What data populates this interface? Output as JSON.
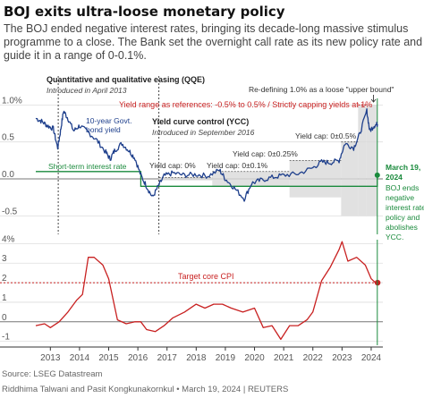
{
  "header": {
    "title": "BOJ exits ultra-loose monetary policy",
    "subtitle_lines": [
      "The BOJ ended negative interest rates, bringing its decade-long massive stimulus",
      "programme to a close. The Bank set the overnight call rate as its new policy rate and will",
      "guide it in a range of 0-0.1%."
    ]
  },
  "colors": {
    "jgb_line": "#1e3f8c",
    "cpi_line": "#c82020",
    "policy_rate": "#1a8a3c",
    "band_fill": "#d9d9d9",
    "grid": "#dddddd",
    "yield_range_text": "#c82020"
  },
  "annotations": {
    "qqe_title": "Quantitative and qualitative easing (QQE)",
    "qqe_date": "Introduced in April 2013",
    "ycc_title": "Yield curve control (YCC)",
    "ycc_date": "Introduced in September 2016",
    "jgb_label_line1": "10-year Govt.",
    "jgb_label_line2": "bond yield",
    "policy_rate_label": "Short-term interest rate",
    "yield_range": "Yield range as references: -0.5% to 0.5% / Strictly capping yields at 1%",
    "redefine": "Re-defining 1.0% as a loose \"upper bound\"",
    "cap_0": "Yield cap: 0%",
    "cap_01": "Yield cap: 0±0.1%",
    "cap_025": "Yield cap: 0±0.25%",
    "cap_05": "Yield cap: 0±0.5%",
    "target_cpi": "Target core CPI",
    "march_date": "March 19,",
    "march_year": "2024",
    "boj_ends": [
      "BOJ ends",
      "negative",
      "interest rate",
      "policy and",
      "abolishes",
      "YCC."
    ]
  },
  "footer": {
    "source": "Source: LSEG Datastream",
    "credit": "Riddhima Talwani and Pasit Kongkunakornkul • March 19, 2024 | REUTERS"
  },
  "chart_data": [
    {
      "type": "line",
      "title": "",
      "xlabel": "",
      "ylabel": "",
      "y_tick_labels": [
        "1.0%",
        "0.5",
        "0.0",
        "-0.5"
      ],
      "ylim": [
        -0.75,
        1.15
      ],
      "grid": true,
      "series": [
        {
          "name": "10-year Govt. bond yield",
          "x": [
            2012.5,
            2012.7,
            2012.9,
            2013.1,
            2013.25,
            2013.35,
            2013.45,
            2013.6,
            2013.8,
            2014.0,
            2014.3,
            2014.6,
            2014.9,
            2015.05,
            2015.2,
            2015.45,
            2015.7,
            2015.9,
            2016.1,
            2016.3,
            2016.5,
            2016.7,
            2016.9,
            2017.2,
            2017.6,
            2018.0,
            2018.4,
            2018.8,
            2019.0,
            2019.3,
            2019.65,
            2019.9,
            2020.2,
            2020.6,
            2021.0,
            2021.5,
            2022.0,
            2022.3,
            2022.6,
            2022.9,
            2023.1,
            2023.4,
            2023.6,
            2023.85,
            2023.95,
            2024.1,
            2024.22
          ],
          "values": [
            0.82,
            0.78,
            0.72,
            0.68,
            0.42,
            0.65,
            0.92,
            0.82,
            0.65,
            0.72,
            0.63,
            0.52,
            0.36,
            0.27,
            0.38,
            0.48,
            0.38,
            0.28,
            0.05,
            -0.1,
            -0.25,
            -0.1,
            0.04,
            0.08,
            0.05,
            0.06,
            0.04,
            0.12,
            0.0,
            -0.12,
            -0.27,
            -0.06,
            -0.02,
            0.02,
            0.05,
            0.07,
            0.15,
            0.23,
            0.22,
            0.25,
            0.48,
            0.42,
            0.6,
            0.92,
            0.65,
            0.72,
            0.74
          ]
        },
        {
          "name": "Short-term interest rate",
          "x": [
            2012.5,
            2016.1,
            2016.1,
            2024.21,
            2024.21,
            2024.25
          ],
          "values": [
            0.1,
            0.1,
            -0.1,
            -0.1,
            0.05,
            0.05
          ]
        }
      ]
    },
    {
      "type": "line",
      "title": "",
      "xlabel": "",
      "ylabel": "",
      "categories_x_ticks": [
        "2013",
        "2014",
        "2015",
        "2016",
        "2017",
        "2018",
        "2019",
        "2020",
        "2021",
        "2022",
        "2023",
        "2024"
      ],
      "y_tick_labels": [
        "4%",
        "3",
        "2",
        "1",
        "0",
        "-1"
      ],
      "ylim": [
        -1.2,
        4.2
      ],
      "grid": true,
      "series": [
        {
          "name": "Core CPI",
          "x": [
            2012.5,
            2012.8,
            2013.0,
            2013.3,
            2013.6,
            2013.9,
            2014.1,
            2014.3,
            2014.5,
            2014.8,
            2015.0,
            2015.3,
            2015.6,
            2015.9,
            2016.1,
            2016.3,
            2016.6,
            2016.9,
            2017.2,
            2017.6,
            2018.0,
            2018.3,
            2018.6,
            2018.9,
            2019.2,
            2019.6,
            2020.0,
            2020.3,
            2020.6,
            2020.9,
            2021.2,
            2021.5,
            2021.8,
            2022.0,
            2022.3,
            2022.6,
            2022.9,
            2023.0,
            2023.2,
            2023.5,
            2023.8,
            2024.0,
            2024.15,
            2024.22
          ],
          "values": [
            -0.2,
            -0.1,
            -0.3,
            0.0,
            0.5,
            1.1,
            1.4,
            3.3,
            3.3,
            2.9,
            2.2,
            0.1,
            -0.1,
            0.0,
            0.0,
            -0.4,
            -0.5,
            -0.2,
            0.2,
            0.5,
            0.9,
            0.7,
            0.9,
            0.9,
            0.7,
            0.5,
            0.7,
            -0.3,
            -0.2,
            -0.9,
            -0.2,
            -0.2,
            0.1,
            0.5,
            2.1,
            2.8,
            3.7,
            4.1,
            3.1,
            3.3,
            2.9,
            2.2,
            2.0,
            2.0
          ]
        },
        {
          "name": "Target core CPI",
          "x": [
            2012.5,
            2024.22
          ],
          "values": [
            2,
            2
          ]
        }
      ]
    }
  ]
}
